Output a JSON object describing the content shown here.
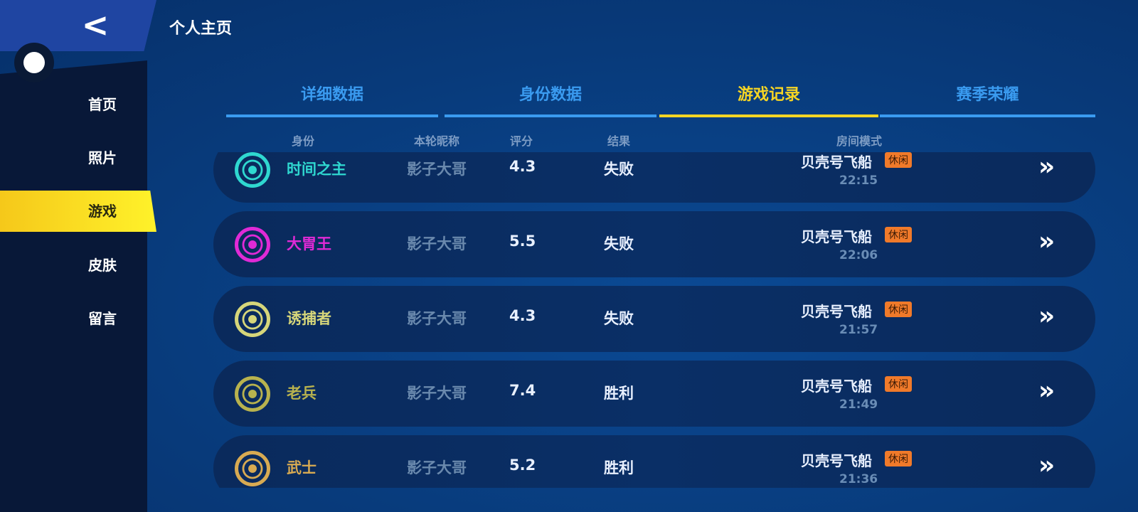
{
  "header": {
    "title": "个人主页",
    "back_icon": "chevron-left-icon"
  },
  "sidebar": {
    "items": [
      {
        "label": "首页"
      },
      {
        "label": "照片"
      },
      {
        "label": "游戏",
        "active": true
      },
      {
        "label": "皮肤"
      },
      {
        "label": "留言"
      }
    ]
  },
  "tabs": [
    {
      "label": "详细数据"
    },
    {
      "label": "身份数据"
    },
    {
      "label": "游戏记录",
      "active": true
    },
    {
      "label": "赛季荣耀"
    }
  ],
  "columns": [
    "身份",
    "本轮昵称",
    "评分",
    "结果",
    "房间模式"
  ],
  "rows": [
    {
      "role": "时间之主",
      "role_color": "#2fd8d0",
      "icon": "spiral-clock-icon",
      "nickname": "影子大哥",
      "score": "4.3",
      "result": "失败",
      "map": "贝壳号飞船",
      "mode": "休闲",
      "time": "22:15"
    },
    {
      "role": "大胃王",
      "role_color": "#e02ad6",
      "icon": "chef-blob-icon",
      "nickname": "影子大哥",
      "score": "5.5",
      "result": "失败",
      "map": "贝壳号飞船",
      "mode": "休闲",
      "time": "22:06"
    },
    {
      "role": "诱捕者",
      "role_color": "#d6d67a",
      "icon": "trap-horn-icon",
      "nickname": "影子大哥",
      "score": "4.3",
      "result": "失败",
      "map": "贝壳号飞船",
      "mode": "休闲",
      "time": "21:57"
    },
    {
      "role": "老兵",
      "role_color": "#b8b24e",
      "icon": "veteran-badge-icon",
      "nickname": "影子大哥",
      "score": "7.4",
      "result": "胜利",
      "map": "贝壳号飞船",
      "mode": "休闲",
      "time": "21:49"
    },
    {
      "role": "武士",
      "role_color": "#d8aa52",
      "icon": "samurai-helmet-icon",
      "nickname": "影子大哥",
      "score": "5.2",
      "result": "胜利",
      "map": "贝壳号飞船",
      "mode": "休闲",
      "time": "21:36"
    }
  ]
}
